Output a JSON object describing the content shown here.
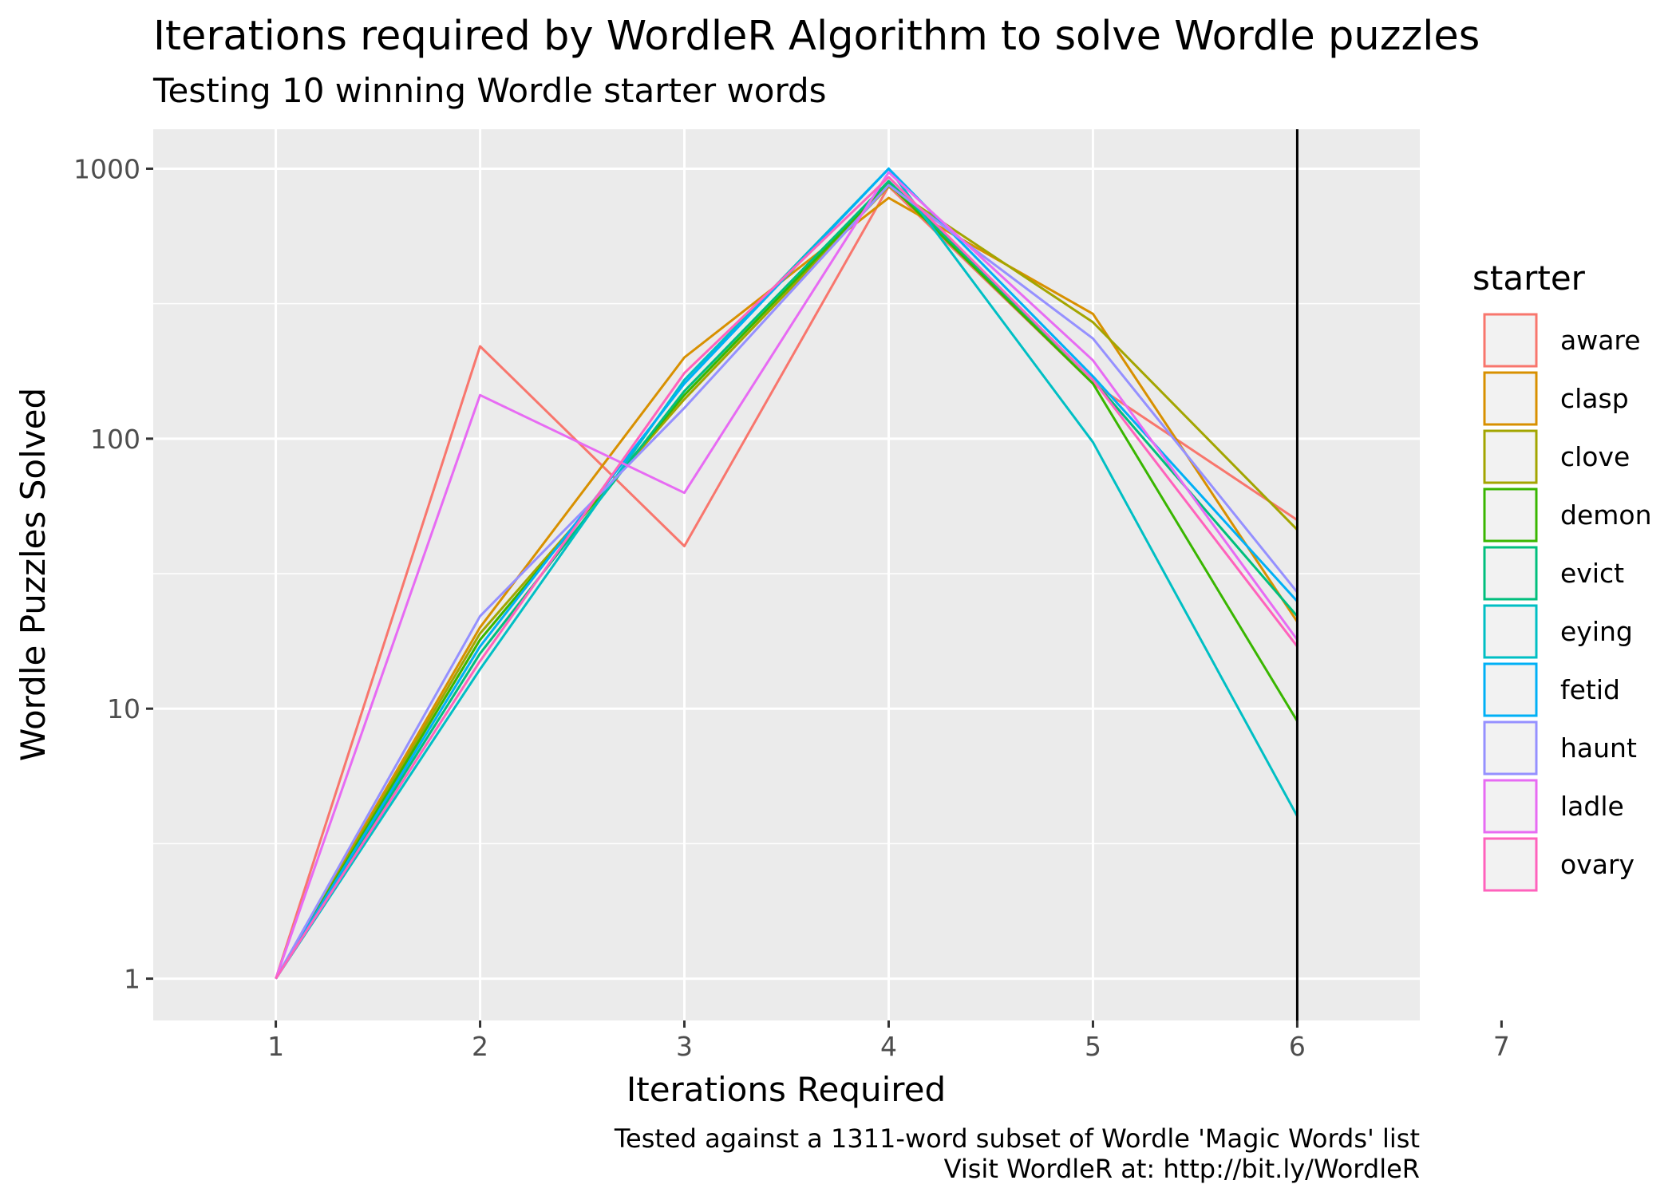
{
  "chart_data": {
    "type": "line",
    "title": "Iterations required by WordleR Algorithm to solve Wordle puzzles",
    "subtitle": "Testing 10 winning Wordle starter words",
    "xlabel": "Iterations Required",
    "ylabel": "Wordle Puzzles Solved",
    "caption": [
      "Tested against a 1311-word subset of Wordle 'Magic Words' list",
      "Visit WordleR at: http://bit.ly/WordleR"
    ],
    "x_ticks": [
      "1",
      "2",
      "3",
      "4",
      "5",
      "6",
      "7"
    ],
    "y_ticks": [
      "1",
      "10",
      "100",
      "1000"
    ],
    "y_scale": "log10",
    "xlim": [
      0.4,
      6.6
    ],
    "ylim": [
      0.7,
      1400
    ],
    "vline_x": 6,
    "grid": true,
    "legend": {
      "title": "starter",
      "position": "right"
    },
    "x": [
      1,
      2,
      3,
      4,
      5,
      6
    ],
    "series": [
      {
        "name": "aware",
        "color": "#F8766D",
        "values": [
          1,
          220,
          40,
          860,
          160,
          50
        ]
      },
      {
        "name": "clasp",
        "color": "#D89000",
        "values": [
          1,
          20,
          200,
          780,
          290,
          21
        ]
      },
      {
        "name": "clove",
        "color": "#A3A500",
        "values": [
          1,
          19,
          140,
          860,
          270,
          46
        ]
      },
      {
        "name": "demon",
        "color": "#39B600",
        "values": [
          1,
          18,
          145,
          880,
          160,
          9
        ]
      },
      {
        "name": "evict",
        "color": "#00BF7D",
        "values": [
          1,
          16,
          150,
          900,
          165,
          22
        ]
      },
      {
        "name": "eying",
        "color": "#00BFC4",
        "values": [
          1,
          14,
          165,
          1000,
          97,
          4
        ]
      },
      {
        "name": "fetid",
        "color": "#00B0F6",
        "values": [
          1,
          17,
          160,
          1000,
          170,
          25
        ]
      },
      {
        "name": "haunt",
        "color": "#9590FF",
        "values": [
          1,
          22,
          130,
          870,
          235,
          27
        ]
      },
      {
        "name": "ladle",
        "color": "#E76BF3",
        "values": [
          1,
          145,
          63,
          970,
          195,
          18
        ]
      },
      {
        "name": "ovary",
        "color": "#FF62BC",
        "values": [
          1,
          15,
          175,
          930,
          165,
          17
        ]
      }
    ]
  }
}
